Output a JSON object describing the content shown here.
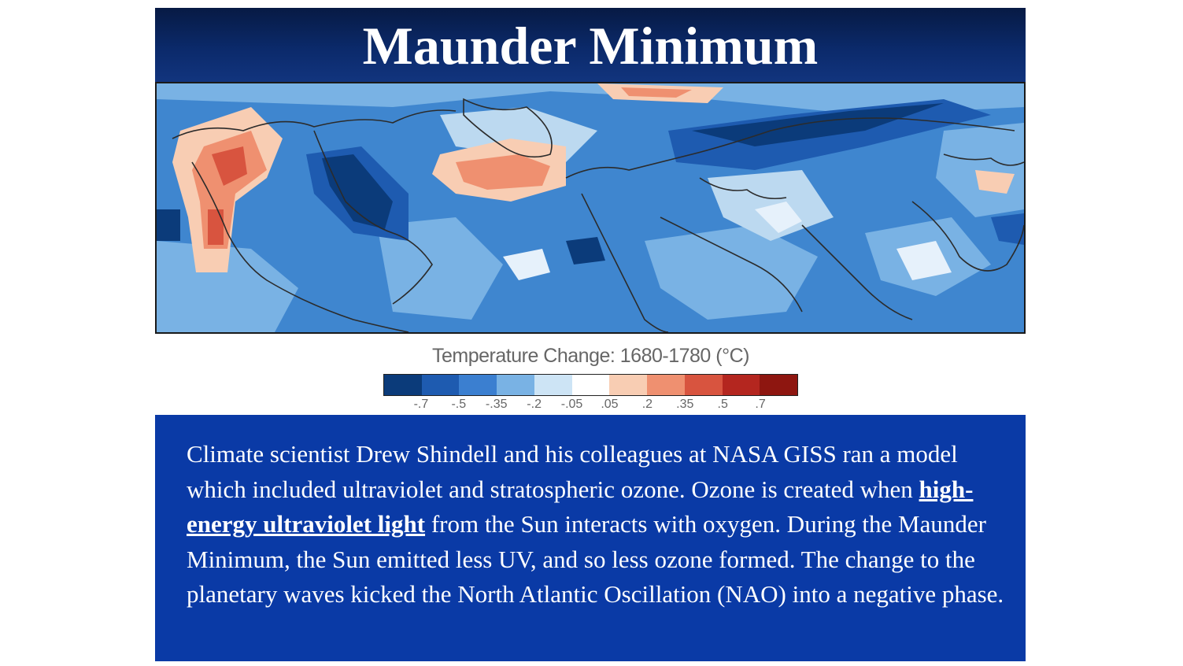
{
  "slide": {
    "title": "Maunder Minimum"
  },
  "legend": {
    "title": "Temperature Change: 1680-1780 (°C)",
    "colors": [
      "#0b3b7a",
      "#1e5bb0",
      "#3b7fd0",
      "#79b2e4",
      "#cde4f5",
      "#ffffff",
      "#f8cdb3",
      "#ef9070",
      "#d8543f",
      "#b4261f",
      "#8e1610"
    ],
    "ticks": [
      "-.7",
      "-.5",
      "-.35",
      "-.2",
      "-.05",
      ".05",
      ".2",
      ".35",
      ".5",
      ".7"
    ]
  },
  "description": {
    "part1": "Climate scientist Drew Shindell and his colleagues at NASA GISS ran a model which included ultraviolet and stratospheric ozone. Ozone is created when ",
    "link": "high-energy ultraviolet light",
    "part2": " from the Sun interacts with oxygen. During the Maunder Minimum, the Sun emitted less UV, and so less ozone formed. The change to the planetary waves kicked the North Atlantic Oscillation (NAO) into a negative phase."
  },
  "colors": {
    "header_background": "#0b2a6b",
    "text_box_background": "#0a3aa6",
    "map_base": "#3f86cf"
  }
}
